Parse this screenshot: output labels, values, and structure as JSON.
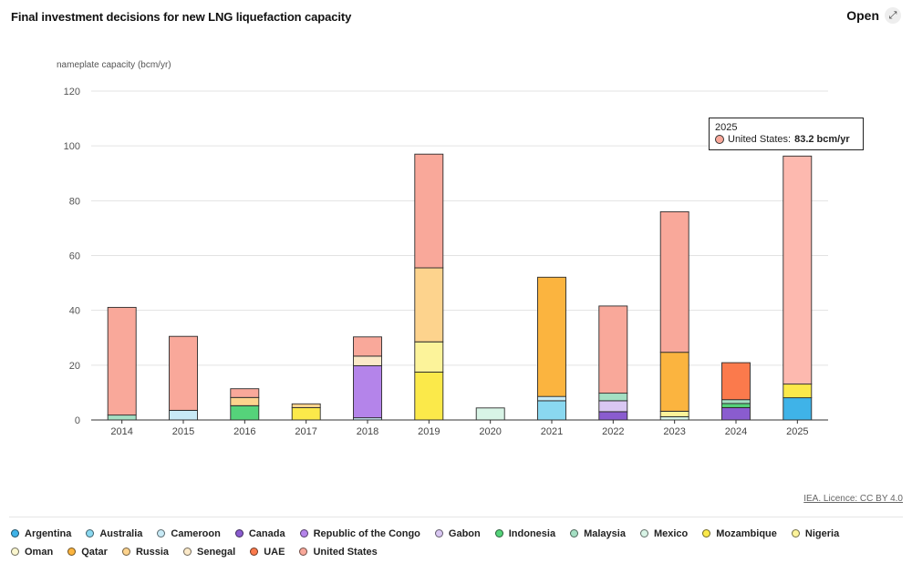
{
  "header": {
    "title": "Final investment decisions for new LNG liquefaction capacity",
    "open_label": "Open",
    "open_icon": "expand-icon"
  },
  "source": "IEA. Licence: CC BY 4.0",
  "tooltip": {
    "year": "2025",
    "series": "United States:",
    "value": "83.2 bcm/yr",
    "color": "#f9a89a"
  },
  "chart_data": {
    "type": "bar",
    "stacked": true,
    "ylabel": "nameplate capacity (bcm/yr)",
    "xlabel": "",
    "ylim": [
      0,
      120
    ],
    "yticks": [
      0,
      20,
      40,
      60,
      80,
      100,
      120
    ],
    "grid": true,
    "legend_position": "bottom",
    "categories": [
      "2014",
      "2015",
      "2016",
      "2017",
      "2018",
      "2019",
      "2020",
      "2021",
      "2022",
      "2023",
      "2024",
      "2025"
    ],
    "series": [
      {
        "name": "Argentina",
        "color": "#3fb3e8",
        "values": [
          0,
          0,
          0,
          0,
          0,
          0,
          0,
          0,
          0,
          0,
          0,
          8.1
        ]
      },
      {
        "name": "Australia",
        "color": "#8ad8f0",
        "values": [
          0,
          0,
          0,
          0,
          0,
          0,
          0,
          7.0,
          0,
          0,
          0,
          0
        ]
      },
      {
        "name": "Cameroon",
        "color": "#c8eaf6",
        "values": [
          0,
          3.5,
          0,
          0,
          0.8,
          0,
          0,
          1.6,
          0,
          0,
          0,
          0
        ]
      },
      {
        "name": "Canada",
        "color": "#8a5ccf",
        "values": [
          0,
          0,
          0,
          0,
          0,
          0,
          0,
          0,
          3.0,
          0,
          4.5,
          0
        ]
      },
      {
        "name": "Republic of the Congo",
        "color": "#b484ea",
        "values": [
          0,
          0,
          0,
          0,
          19.0,
          0,
          0,
          0,
          0,
          0,
          0,
          0
        ]
      },
      {
        "name": "Gabon",
        "color": "#d9c7f2",
        "values": [
          0,
          0,
          0,
          0,
          0,
          0,
          0,
          0,
          4.0,
          0,
          0,
          0
        ]
      },
      {
        "name": "Indonesia",
        "color": "#55d37a",
        "values": [
          0,
          0,
          5.2,
          0,
          0,
          0,
          0,
          0,
          0,
          0,
          1.5,
          0
        ]
      },
      {
        "name": "Malaysia",
        "color": "#a4dfc3",
        "values": [
          1.8,
          0,
          0,
          0,
          0,
          0,
          0,
          0,
          2.8,
          0,
          1.4,
          0
        ]
      },
      {
        "name": "Mexico",
        "color": "#d8f4e6",
        "values": [
          0,
          0,
          0,
          0,
          0,
          0,
          4.4,
          0,
          0,
          1.2,
          0,
          0
        ]
      },
      {
        "name": "Mozambique",
        "color": "#fbe94a",
        "values": [
          0,
          0,
          0,
          4.5,
          0,
          17.5,
          0,
          0,
          0,
          0,
          0,
          5.0
        ]
      },
      {
        "name": "Nigeria",
        "color": "#fcf39a",
        "values": [
          0,
          0,
          0,
          0,
          0,
          11.0,
          0,
          0,
          0,
          2.0,
          0,
          0
        ]
      },
      {
        "name": "Oman",
        "color": "#fbf7cf",
        "values": [
          0,
          0,
          0,
          0,
          0,
          0,
          0,
          0,
          0,
          0,
          0,
          0
        ]
      },
      {
        "name": "Qatar",
        "color": "#fbb43f",
        "values": [
          0,
          0,
          0,
          0,
          0,
          0,
          0,
          43.5,
          0,
          21.5,
          0,
          0
        ]
      },
      {
        "name": "Russia",
        "color": "#fdd38d",
        "values": [
          0,
          0,
          3.0,
          1.4,
          0,
          27.0,
          0,
          0,
          0,
          0,
          0,
          0
        ]
      },
      {
        "name": "Senegal",
        "color": "#fbe9c8",
        "values": [
          0,
          0,
          0,
          0,
          3.5,
          0,
          0,
          0,
          0,
          0,
          0,
          0
        ]
      },
      {
        "name": "UAE",
        "color": "#fb7a4c",
        "values": [
          0,
          0,
          0,
          0,
          0,
          0,
          0,
          0,
          0,
          0,
          13.5,
          0
        ]
      },
      {
        "name": "United States",
        "color": "#f9a89a",
        "values": [
          39.3,
          27.0,
          3.2,
          0,
          7.0,
          41.5,
          0,
          0,
          31.8,
          51.3,
          0,
          83.2
        ]
      }
    ]
  },
  "highlight": {
    "category": "2025",
    "series": "United States",
    "color": "#fdb9af"
  }
}
